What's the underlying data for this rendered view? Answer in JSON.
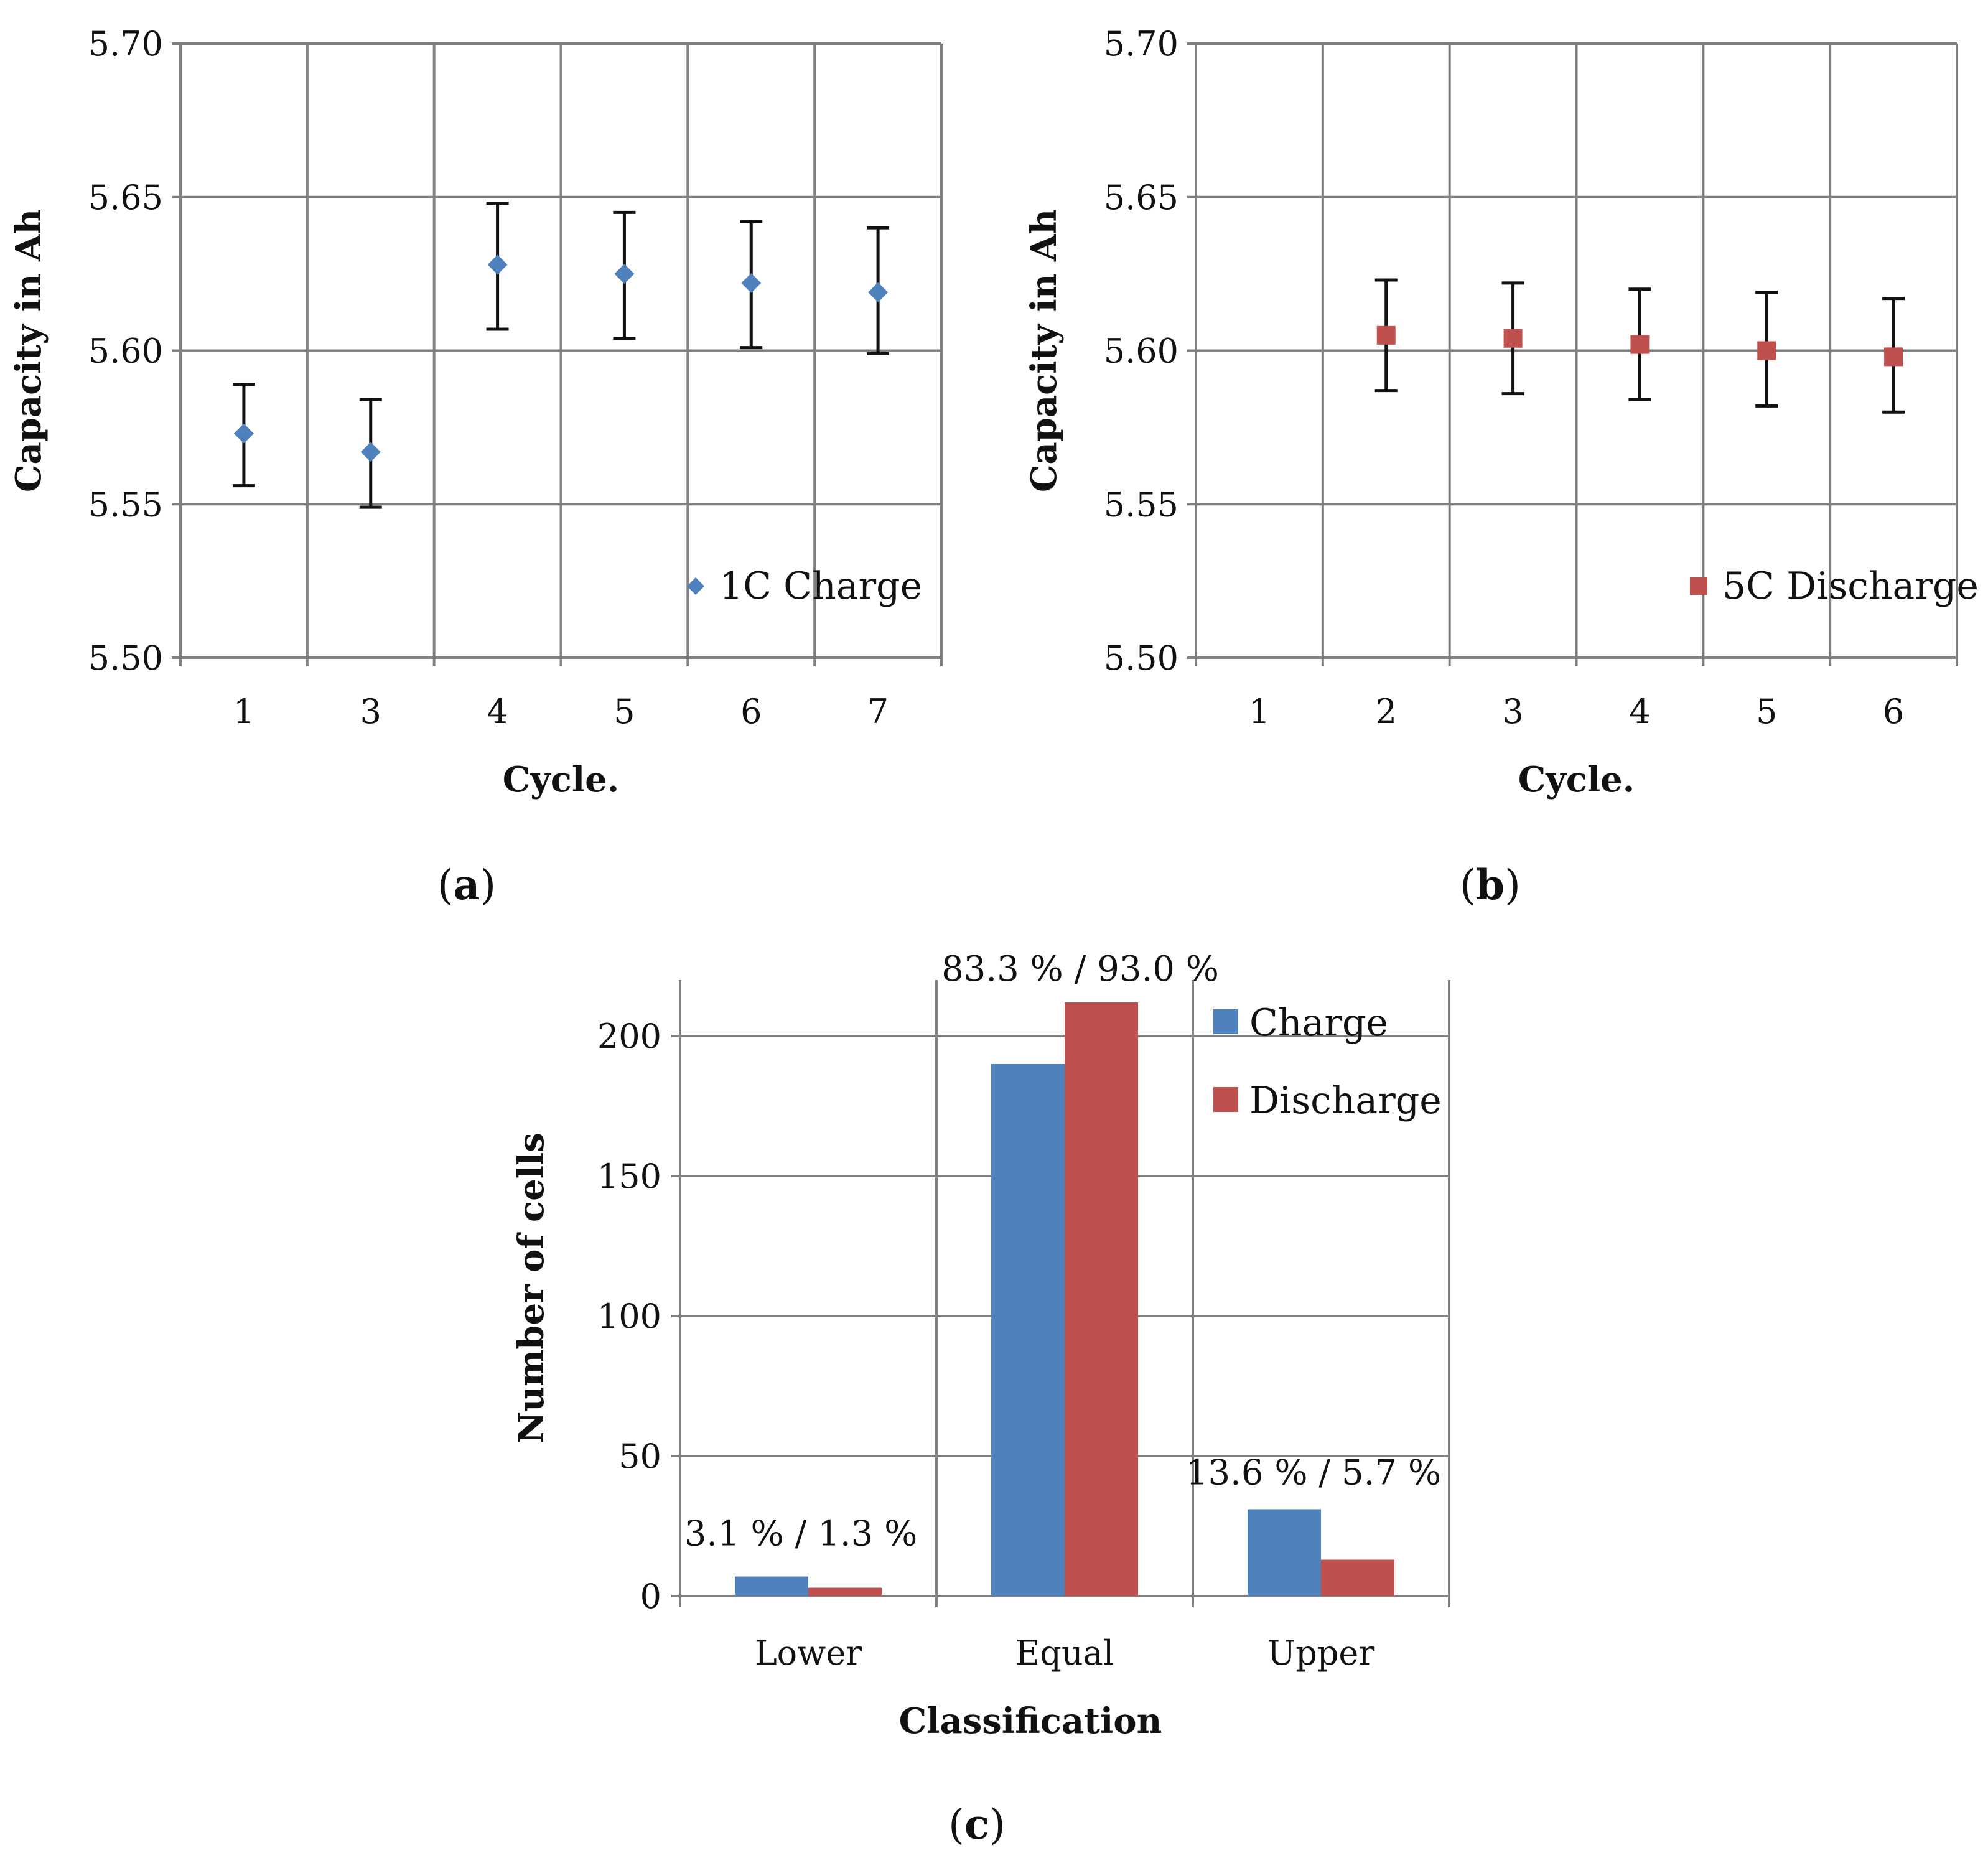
{
  "colors": {
    "charge": "#4F81BD",
    "discharge": "#C0504D",
    "grid": "#7f7f7f",
    "errorbar": "#111111"
  },
  "chart_data": [
    {
      "type": "scatter",
      "panel_label": "(a)",
      "panel_letter": "a",
      "xlabel": "Cycle.",
      "ylabel": "Capacity in Ah",
      "categories": [
        "1",
        "3",
        "4",
        "5",
        "6",
        "7"
      ],
      "ylim": [
        5.5,
        5.7
      ],
      "yticks": [
        "5.50",
        "5.55",
        "5.60",
        "5.65",
        "5.70"
      ],
      "grid": true,
      "legend_position": "bottom-right",
      "series": [
        {
          "name": "1C Charge",
          "marker": "diamond",
          "values": [
            5.573,
            5.567,
            5.628,
            5.625,
            5.622,
            5.619
          ],
          "err_low": [
            5.556,
            5.549,
            5.607,
            5.604,
            5.601,
            5.599
          ],
          "err_high": [
            5.589,
            5.584,
            5.648,
            5.645,
            5.642,
            5.64
          ]
        }
      ]
    },
    {
      "type": "scatter",
      "panel_label": "(b)",
      "panel_letter": "b",
      "xlabel": "Cycle.",
      "ylabel": "Capacity in Ah",
      "categories": [
        "1",
        "2",
        "3",
        "4",
        "5",
        "6"
      ],
      "ylim": [
        5.5,
        5.7
      ],
      "yticks": [
        "5.50",
        "5.55",
        "5.60",
        "5.65",
        "5.70"
      ],
      "grid": true,
      "legend_position": "bottom-right",
      "series": [
        {
          "name": "5C Discharge",
          "marker": "square",
          "values": [
            null,
            5.605,
            5.604,
            5.602,
            5.6,
            5.598
          ],
          "err_low": [
            null,
            5.587,
            5.586,
            5.584,
            5.582,
            5.58
          ],
          "err_high": [
            null,
            5.623,
            5.622,
            5.62,
            5.619,
            5.617
          ]
        }
      ]
    },
    {
      "type": "bar",
      "panel_label": "(c)",
      "panel_letter": "c",
      "xlabel": "Classification",
      "ylabel": "Number of cells",
      "categories": [
        "Lower",
        "Equal",
        "Upper"
      ],
      "ylim": [
        0,
        220
      ],
      "yticks": [
        "0",
        "50",
        "100",
        "150",
        "200"
      ],
      "grid": true,
      "legend_position": "top-right",
      "series": [
        {
          "name": "Charge",
          "values": [
            7,
            190,
            31
          ]
        },
        {
          "name": "Discharge",
          "values": [
            3,
            212,
            13
          ]
        }
      ],
      "annotations": [
        "3.1 % / 1.3 %",
        "83.3 % / 93.0 %",
        "13.6 % / 5.7 %"
      ]
    }
  ]
}
